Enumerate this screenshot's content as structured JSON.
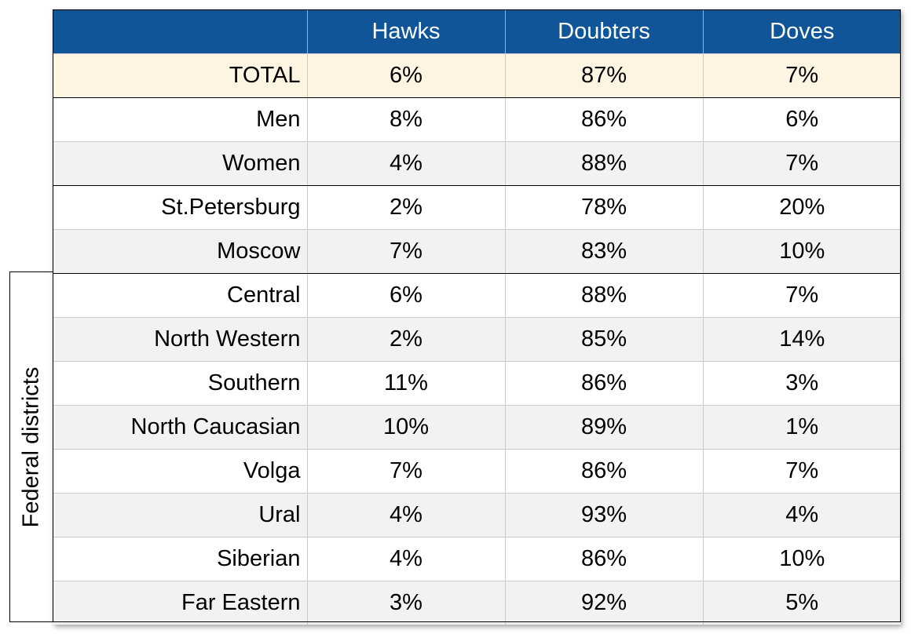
{
  "chart_data": {
    "type": "table",
    "columns": [
      "",
      "Hawks",
      "Doubters",
      "Doves"
    ],
    "rows": [
      {
        "label": "TOTAL",
        "values": [
          "6%",
          "87%",
          "7%"
        ]
      },
      {
        "label": "Men",
        "values": [
          "8%",
          "86%",
          "6%"
        ]
      },
      {
        "label": "Women",
        "values": [
          "4%",
          "88%",
          "7%"
        ]
      },
      {
        "label": "St.Petersburg",
        "values": [
          "2%",
          "78%",
          "20%"
        ]
      },
      {
        "label": "Moscow",
        "values": [
          "7%",
          "83%",
          "10%"
        ]
      },
      {
        "label": "Central",
        "values": [
          "6%",
          "88%",
          "7%"
        ]
      },
      {
        "label": "North Western",
        "values": [
          "2%",
          "85%",
          "14%"
        ]
      },
      {
        "label": "Southern",
        "values": [
          "11%",
          "86%",
          "3%"
        ]
      },
      {
        "label": "North Caucasian",
        "values": [
          "10%",
          "89%",
          "1%"
        ]
      },
      {
        "label": "Volga",
        "values": [
          "7%",
          "86%",
          "7%"
        ]
      },
      {
        "label": "Ural",
        "values": [
          "4%",
          "93%",
          "4%"
        ]
      },
      {
        "label": "Siberian",
        "values": [
          "4%",
          "86%",
          "10%"
        ]
      },
      {
        "label": "Far Eastern",
        "values": [
          "3%",
          "92%",
          "5%"
        ]
      }
    ],
    "row_group_label": "Federal districts",
    "colors": {
      "header_bg": "#0f5597",
      "header_text": "#ffffff",
      "total_row_bg": "#fdf5e1",
      "stripe_bg": "#f2f2f2"
    }
  }
}
